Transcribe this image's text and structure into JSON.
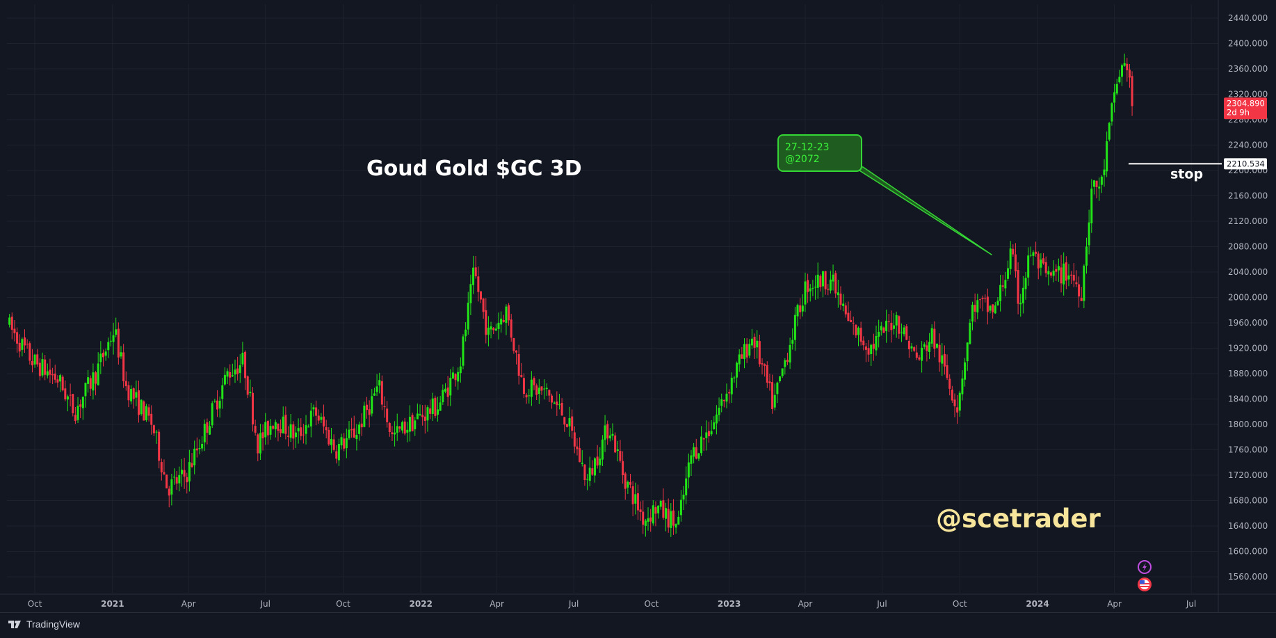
{
  "chart_data": {
    "type": "candlestick",
    "symbol_title": "Goud Gold $GC 3D",
    "watermark": "@scetrader",
    "timeframe": "3D",
    "ylim": [
      1530,
      2455
    ],
    "y_ticks": [
      1560,
      1600,
      1640,
      1680,
      1720,
      1760,
      1800,
      1840,
      1880,
      1920,
      1960,
      2000,
      2040,
      2080,
      2120,
      2160,
      2200,
      2240,
      2280,
      2320,
      2360,
      2400,
      2440
    ],
    "y_tick_labels": [
      "1560.000",
      "1600.000",
      "1640.000",
      "1680.000",
      "1720.000",
      "1760.000",
      "1800.000",
      "1840.000",
      "1880.000",
      "1920.000",
      "1960.000",
      "2000.000",
      "2040.000",
      "2080.000",
      "2120.000",
      "2160.000",
      "2200.000",
      "2240.000",
      "2280.000",
      "2320.000",
      "2360.000",
      "2400.000",
      "2440.000"
    ],
    "x_range": [
      "2020-08-29",
      "2024-08-02"
    ],
    "x_ticks": [
      {
        "date": "2020-10-01",
        "label": "Oct",
        "bold": false
      },
      {
        "date": "2021-01-01",
        "label": "2021",
        "bold": true
      },
      {
        "date": "2021-04-01",
        "label": "Apr",
        "bold": false
      },
      {
        "date": "2021-07-01",
        "label": "Jul",
        "bold": false
      },
      {
        "date": "2021-10-01",
        "label": "Oct",
        "bold": false
      },
      {
        "date": "2022-01-01",
        "label": "2022",
        "bold": true
      },
      {
        "date": "2022-04-01",
        "label": "Apr",
        "bold": false
      },
      {
        "date": "2022-07-01",
        "label": "Jul",
        "bold": false
      },
      {
        "date": "2022-10-01",
        "label": "Oct",
        "bold": false
      },
      {
        "date": "2023-01-01",
        "label": "2023",
        "bold": true
      },
      {
        "date": "2023-04-01",
        "label": "Apr",
        "bold": false
      },
      {
        "date": "2023-07-01",
        "label": "Jul",
        "bold": false
      },
      {
        "date": "2023-10-01",
        "label": "Oct",
        "bold": false
      },
      {
        "date": "2024-01-01",
        "label": "2024",
        "bold": true
      },
      {
        "date": "2024-04-01",
        "label": "Apr",
        "bold": false
      },
      {
        "date": "2024-07-01",
        "label": "Jul",
        "bold": false
      }
    ],
    "series": [
      {
        "points": [
          {
            "date": "2020-09-01",
            "close": 1960
          },
          {
            "date": "2020-10-01",
            "close": 1900
          },
          {
            "date": "2020-11-01",
            "close": 1870
          },
          {
            "date": "2020-11-20",
            "close": 1820
          },
          {
            "date": "2020-12-15",
            "close": 1880
          },
          {
            "date": "2021-01-06",
            "close": 1950
          },
          {
            "date": "2021-01-20",
            "close": 1860
          },
          {
            "date": "2021-02-20",
            "close": 1800
          },
          {
            "date": "2021-03-10",
            "close": 1700
          },
          {
            "date": "2021-04-01",
            "close": 1720
          },
          {
            "date": "2021-04-20",
            "close": 1780
          },
          {
            "date": "2021-05-20",
            "close": 1880
          },
          {
            "date": "2021-06-08",
            "close": 1900
          },
          {
            "date": "2021-06-25",
            "close": 1770
          },
          {
            "date": "2021-07-15",
            "close": 1810
          },
          {
            "date": "2021-08-10",
            "close": 1780
          },
          {
            "date": "2021-09-01",
            "close": 1820
          },
          {
            "date": "2021-09-25",
            "close": 1760
          },
          {
            "date": "2021-10-20",
            "close": 1790
          },
          {
            "date": "2021-11-15",
            "close": 1860
          },
          {
            "date": "2021-12-01",
            "close": 1780
          },
          {
            "date": "2021-12-31",
            "close": 1810
          },
          {
            "date": "2022-01-25",
            "close": 1830
          },
          {
            "date": "2022-02-20",
            "close": 1900
          },
          {
            "date": "2022-03-08",
            "close": 2040
          },
          {
            "date": "2022-03-25",
            "close": 1940
          },
          {
            "date": "2022-04-15",
            "close": 1980
          },
          {
            "date": "2022-05-05",
            "close": 1860
          },
          {
            "date": "2022-06-01",
            "close": 1850
          },
          {
            "date": "2022-06-25",
            "close": 1810
          },
          {
            "date": "2022-07-20",
            "close": 1710
          },
          {
            "date": "2022-08-15",
            "close": 1800
          },
          {
            "date": "2022-09-01",
            "close": 1720
          },
          {
            "date": "2022-09-25",
            "close": 1650
          },
          {
            "date": "2022-10-10",
            "close": 1670
          },
          {
            "date": "2022-11-04",
            "close": 1640
          },
          {
            "date": "2022-11-20",
            "close": 1750
          },
          {
            "date": "2022-12-15",
            "close": 1800
          },
          {
            "date": "2023-01-10",
            "close": 1880
          },
          {
            "date": "2023-02-01",
            "close": 1940
          },
          {
            "date": "2023-02-25",
            "close": 1830
          },
          {
            "date": "2023-03-15",
            "close": 1920
          },
          {
            "date": "2023-04-05",
            "close": 2020
          },
          {
            "date": "2023-05-04",
            "close": 2030
          },
          {
            "date": "2023-05-25",
            "close": 1960
          },
          {
            "date": "2023-06-20",
            "close": 1920
          },
          {
            "date": "2023-07-20",
            "close": 1970
          },
          {
            "date": "2023-08-15",
            "close": 1900
          },
          {
            "date": "2023-09-01",
            "close": 1940
          },
          {
            "date": "2023-10-01",
            "close": 1830
          },
          {
            "date": "2023-10-20",
            "close": 1990
          },
          {
            "date": "2023-11-15",
            "close": 1980
          },
          {
            "date": "2023-12-04",
            "close": 2070
          },
          {
            "date": "2023-12-13",
            "close": 1990
          },
          {
            "date": "2023-12-27",
            "close": 2072
          },
          {
            "date": "2024-01-15",
            "close": 2030
          },
          {
            "date": "2024-02-10",
            "close": 2040
          },
          {
            "date": "2024-02-25",
            "close": 2010
          },
          {
            "date": "2024-03-08",
            "close": 2170
          },
          {
            "date": "2024-03-20",
            "close": 2180
          },
          {
            "date": "2024-04-05",
            "close": 2330
          },
          {
            "date": "2024-04-12",
            "close": 2360
          },
          {
            "date": "2024-04-20",
            "close": 2370
          },
          {
            "date": "2024-04-24",
            "close": 2305
          }
        ]
      }
    ],
    "last_price": {
      "value": 2304.89,
      "label": "2304.890",
      "countdown": "2d 9h",
      "color": "#f23645"
    },
    "stop_level": {
      "value": 2210.534,
      "label": "2210.534",
      "text": "stop"
    },
    "callout": {
      "line1": "27-12-23",
      "line2": "@2072",
      "target_date": "2023-11-08",
      "target_value": 2067
    },
    "colors": {
      "up": "#22e518",
      "down": "#f23645",
      "background": "#131722",
      "grid": "#1e222d",
      "axis_text": "#b2b5be",
      "watermark": "#f7e59c",
      "callout_fill": "#1f5c1f",
      "callout_border": "#35d635",
      "callout_text": "#3af23a"
    }
  },
  "branding": {
    "name": "TradingView"
  },
  "icons": [
    "lightning-icon",
    "us-flag-icon"
  ]
}
